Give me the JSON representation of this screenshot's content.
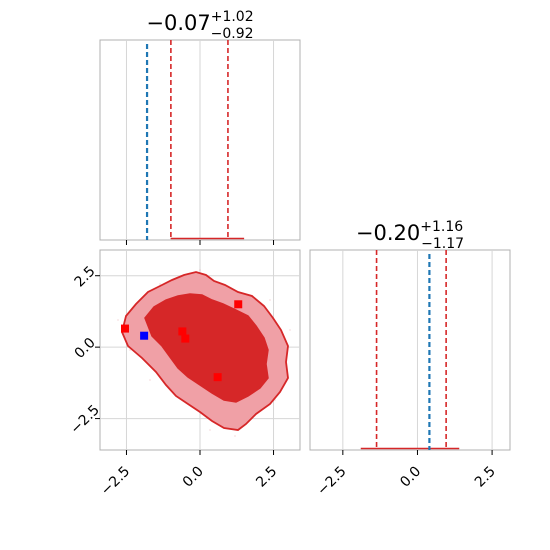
{
  "chart_data": [
    {
      "type": "histogram",
      "panel": "top-left",
      "title": {
        "main": "−0.07",
        "sup": "+1.02",
        "sub": "−0.92"
      },
      "xlim": [
        -3.4,
        3.4
      ],
      "xticks": [
        -2.5,
        0.0,
        2.5
      ],
      "grid": true,
      "quantile_lines": [
        -0.99,
        -0.07,
        0.95
      ],
      "truth_line": -1.8,
      "colors": {
        "posterior": "#d62728",
        "truth": "#1f77b4"
      }
    },
    {
      "type": "contour",
      "panel": "bottom-left",
      "xlim": [
        -3.4,
        3.4
      ],
      "ylim": [
        -3.6,
        3.4
      ],
      "xticks": [
        -2.5,
        0.0,
        2.5
      ],
      "yticks": [
        -2.5,
        0.0,
        2.5
      ],
      "xtick_labels": [
        "−2.5",
        "0.0",
        "2.5"
      ],
      "ytick_labels": [
        "−2.5",
        "0.0",
        "2.5"
      ],
      "grid": true,
      "red_points": [
        {
          "x": -2.55,
          "y": 0.65
        },
        {
          "x": -0.6,
          "y": 0.55
        },
        {
          "x": -0.5,
          "y": 0.3
        },
        {
          "x": 1.3,
          "y": 1.5
        },
        {
          "x": 0.6,
          "y": -1.05
        }
      ],
      "blue_point": {
        "x": -1.9,
        "y": 0.4
      },
      "colors": {
        "fill_outer": "#f0a0a6",
        "fill_inner": "#d62728",
        "line": "#d62728",
        "point": "#ff0000",
        "truth": "#0000ff"
      }
    },
    {
      "type": "histogram",
      "panel": "bottom-right",
      "title": {
        "main": "−0.20",
        "sup": "+1.16",
        "sub": "−1.17"
      },
      "xlim": [
        -3.6,
        3.1
      ],
      "xticks": [
        -2.5,
        0.0,
        2.5
      ],
      "xtick_labels": [
        "−2.5",
        "0.0",
        "2.5"
      ],
      "grid": true,
      "quantile_lines": [
        -1.37,
        -0.2,
        0.96
      ],
      "truth_line": 0.4,
      "colors": {
        "posterior": "#d62728",
        "truth": "#1f77b4"
      }
    }
  ]
}
